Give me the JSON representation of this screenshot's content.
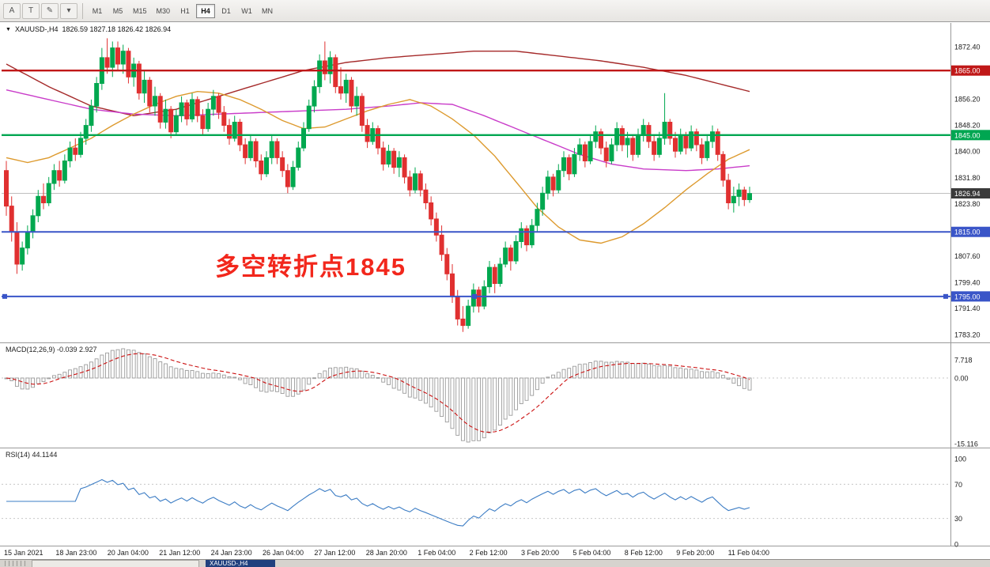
{
  "toolbar": {
    "left_buttons": [
      {
        "name": "font-tool-button",
        "label": "A"
      },
      {
        "name": "text-tool-button",
        "label": "T"
      },
      {
        "name": "color-tool-button",
        "label": "✎"
      },
      {
        "name": "color-tool-dropdown",
        "label": "▾"
      }
    ],
    "timeframes": [
      "M1",
      "M5",
      "M15",
      "M30",
      "H1",
      "H4",
      "D1",
      "W1",
      "MN"
    ],
    "active_timeframe": "H4"
  },
  "quote": {
    "symbol": "XAUUSD-,H4",
    "ohlc": "1826.59 1827.18 1826.42 1826.94"
  },
  "annotation": {
    "text": "多空转折点1845",
    "color": "#f2271c"
  },
  "bottom_tabs": {
    "active_label": "XAUUSD-,H4"
  },
  "chart_data": {
    "type": "candlestick",
    "symbol": "XAUUSD-",
    "timeframe": "H4",
    "ylim": [
      1780.5,
      1877.5
    ],
    "colors": {
      "up": "#00a84f",
      "down": "#e03030",
      "axis_text": "#1a1a1a"
    },
    "price_axis_ticks": [
      1872.4,
      1856.2,
      1848.2,
      1840.0,
      1831.8,
      1823.8,
      1807.6,
      1799.4,
      1791.4,
      1783.2
    ],
    "levels": [
      {
        "price": 1865.0,
        "label": "1865.00",
        "color": "#c01818",
        "width": 2.4
      },
      {
        "price": 1845.0,
        "label": "1845.00",
        "color": "#00a651",
        "width": 2.4
      },
      {
        "price": 1815.0,
        "label": "1815.00",
        "color": "#3a55c8",
        "width": 2
      },
      {
        "price": 1795.0,
        "label": "1795.00",
        "color": "#3a55c8",
        "width": 2,
        "handles": true
      }
    ],
    "current_price": {
      "value": 1826.94,
      "label": "1826.94",
      "bg": "#3a3a3a"
    },
    "moving_averages": [
      {
        "name": "ma-slow-darkred",
        "color": "#a52a2a",
        "points": [
          [
            0,
            1867
          ],
          [
            8,
            1860
          ],
          [
            16,
            1854
          ],
          [
            24,
            1851
          ],
          [
            32,
            1853
          ],
          [
            40,
            1857
          ],
          [
            48,
            1861
          ],
          [
            56,
            1865
          ],
          [
            64,
            1867.5
          ],
          [
            72,
            1869
          ],
          [
            80,
            1870
          ],
          [
            88,
            1871
          ],
          [
            96,
            1871
          ],
          [
            104,
            1869.5
          ],
          [
            112,
            1868
          ],
          [
            120,
            1866
          ],
          [
            128,
            1863.5
          ],
          [
            134,
            1861
          ],
          [
            140,
            1858.5
          ]
        ]
      },
      {
        "name": "ma-mid-magenta",
        "color": "#c93cc9",
        "points": [
          [
            0,
            1859
          ],
          [
            8,
            1856
          ],
          [
            16,
            1853
          ],
          [
            24,
            1851.5
          ],
          [
            32,
            1851
          ],
          [
            40,
            1851.5
          ],
          [
            48,
            1852
          ],
          [
            56,
            1852.5
          ],
          [
            64,
            1853
          ],
          [
            72,
            1854
          ],
          [
            78,
            1855
          ],
          [
            84,
            1854.5
          ],
          [
            90,
            1851
          ],
          [
            96,
            1847
          ],
          [
            102,
            1843
          ],
          [
            108,
            1839
          ],
          [
            114,
            1836
          ],
          [
            120,
            1834.5
          ],
          [
            128,
            1834
          ],
          [
            134,
            1834.5
          ],
          [
            140,
            1835.5
          ]
        ]
      },
      {
        "name": "ma-fast-orange",
        "color": "#dd9a2e",
        "points": [
          [
            0,
            1838
          ],
          [
            4,
            1836.5
          ],
          [
            8,
            1838
          ],
          [
            12,
            1841
          ],
          [
            16,
            1844
          ],
          [
            20,
            1848
          ],
          [
            24,
            1851.5
          ],
          [
            28,
            1854.5
          ],
          [
            32,
            1857
          ],
          [
            36,
            1858.5
          ],
          [
            40,
            1858
          ],
          [
            44,
            1856
          ],
          [
            48,
            1853
          ],
          [
            52,
            1849.5
          ],
          [
            56,
            1847
          ],
          [
            60,
            1847.5
          ],
          [
            64,
            1850
          ],
          [
            68,
            1852.5
          ],
          [
            72,
            1854.5
          ],
          [
            76,
            1856
          ],
          [
            80,
            1854
          ],
          [
            84,
            1850
          ],
          [
            88,
            1845
          ],
          [
            92,
            1838.5
          ],
          [
            96,
            1830.5
          ],
          [
            100,
            1822.5
          ],
          [
            104,
            1816.5
          ],
          [
            108,
            1812.5
          ],
          [
            112,
            1811.5
          ],
          [
            116,
            1813.5
          ],
          [
            120,
            1817.5
          ],
          [
            124,
            1822.5
          ],
          [
            128,
            1828
          ],
          [
            132,
            1833
          ],
          [
            136,
            1837.5
          ],
          [
            140,
            1840.5
          ]
        ]
      }
    ],
    "macd": {
      "label": "MACD(12,26,9) -0.039 2.927",
      "params": [
        12,
        26,
        9
      ],
      "axis": [
        "7.718",
        "0.00",
        "-15.116"
      ]
    },
    "rsi": {
      "label": "RSI(14) 44.1144",
      "period": 14,
      "color": "#3b7cc4",
      "levels": [
        70,
        30
      ],
      "axis": [
        "100",
        "70",
        "30",
        "0"
      ]
    },
    "time_axis": [
      "15 Jan 2021",
      "18 Jan 23:00",
      "20 Jan 04:00",
      "21 Jan 12:00",
      "24 Jan 23:00",
      "26 Jan 04:00",
      "27 Jan 12:00",
      "28 Jan 20:00",
      "1 Feb 04:00",
      "2 Feb 12:00",
      "3 Feb 20:00",
      "5 Feb 04:00",
      "8 Feb 12:00",
      "9 Feb 20:00",
      "11 Feb 04:00"
    ],
    "ohlc": [
      [
        1834,
        1837,
        1820,
        1823
      ],
      [
        1823,
        1826,
        1812,
        1815
      ],
      [
        1815,
        1818,
        1802,
        1805
      ],
      [
        1805,
        1812,
        1803,
        1810
      ],
      [
        1810,
        1817,
        1808,
        1815
      ],
      [
        1815,
        1822,
        1813,
        1820
      ],
      [
        1820,
        1828,
        1818,
        1826
      ],
      [
        1826,
        1830,
        1822,
        1824
      ],
      [
        1824,
        1832,
        1823,
        1830
      ],
      [
        1830,
        1836,
        1828,
        1834
      ],
      [
        1834,
        1837,
        1829,
        1831
      ],
      [
        1831,
        1839,
        1830,
        1837
      ],
      [
        1837,
        1843,
        1835,
        1841
      ],
      [
        1841,
        1844,
        1837,
        1839
      ],
      [
        1839,
        1846,
        1838,
        1844
      ],
      [
        1844,
        1850,
        1842,
        1848
      ],
      [
        1848,
        1856,
        1846,
        1854
      ],
      [
        1854,
        1863,
        1852,
        1861
      ],
      [
        1861,
        1872,
        1859,
        1869
      ],
      [
        1869,
        1875,
        1864,
        1866
      ],
      [
        1866,
        1874,
        1863,
        1872
      ],
      [
        1872,
        1874,
        1865,
        1867
      ],
      [
        1867,
        1873,
        1864,
        1871
      ],
      [
        1871,
        1872,
        1861,
        1863
      ],
      [
        1863,
        1869,
        1860,
        1867
      ],
      [
        1867,
        1868,
        1856,
        1858
      ],
      [
        1858,
        1865,
        1855,
        1862
      ],
      [
        1862,
        1863,
        1852,
        1854
      ],
      [
        1854,
        1860,
        1851,
        1857
      ],
      [
        1857,
        1858,
        1847,
        1849
      ],
      [
        1849,
        1856,
        1847,
        1853
      ],
      [
        1853,
        1854,
        1844,
        1846
      ],
      [
        1846,
        1853,
        1845,
        1851
      ],
      [
        1851,
        1857,
        1849,
        1855
      ],
      [
        1855,
        1856,
        1848,
        1850
      ],
      [
        1850,
        1858,
        1849,
        1856
      ],
      [
        1856,
        1857,
        1849,
        1851
      ],
      [
        1851,
        1853,
        1845,
        1847
      ],
      [
        1847,
        1855,
        1846,
        1853
      ],
      [
        1853,
        1859,
        1851,
        1857
      ],
      [
        1857,
        1858,
        1850,
        1852
      ],
      [
        1852,
        1854,
        1846,
        1848
      ],
      [
        1848,
        1850,
        1842,
        1844
      ],
      [
        1844,
        1851,
        1843,
        1849
      ],
      [
        1849,
        1850,
        1840,
        1842
      ],
      [
        1842,
        1844,
        1836,
        1838
      ],
      [
        1838,
        1845,
        1837,
        1843
      ],
      [
        1843,
        1844,
        1835,
        1837
      ],
      [
        1837,
        1839,
        1831,
        1833
      ],
      [
        1833,
        1840,
        1832,
        1838
      ],
      [
        1838,
        1845,
        1836,
        1843
      ],
      [
        1843,
        1844,
        1836,
        1838
      ],
      [
        1838,
        1840,
        1832,
        1834
      ],
      [
        1834,
        1836,
        1827,
        1829
      ],
      [
        1829,
        1837,
        1828,
        1835
      ],
      [
        1835,
        1843,
        1834,
        1841
      ],
      [
        1841,
        1849,
        1840,
        1847
      ],
      [
        1847,
        1856,
        1846,
        1854
      ],
      [
        1854,
        1862,
        1852,
        1860
      ],
      [
        1860,
        1870,
        1858,
        1868
      ],
      [
        1868,
        1874,
        1862,
        1864
      ],
      [
        1864,
        1871,
        1861,
        1869
      ],
      [
        1869,
        1870,
        1858,
        1860
      ],
      [
        1860,
        1866,
        1856,
        1858
      ],
      [
        1858,
        1864,
        1855,
        1862
      ],
      [
        1862,
        1863,
        1852,
        1854
      ],
      [
        1854,
        1860,
        1851,
        1857
      ],
      [
        1857,
        1858,
        1846,
        1848
      ],
      [
        1848,
        1850,
        1841,
        1843
      ],
      [
        1843,
        1849,
        1842,
        1847
      ],
      [
        1847,
        1848,
        1839,
        1841
      ],
      [
        1841,
        1843,
        1834,
        1836
      ],
      [
        1836,
        1842,
        1835,
        1840
      ],
      [
        1840,
        1841,
        1833,
        1835
      ],
      [
        1835,
        1840,
        1832,
        1838
      ],
      [
        1838,
        1839,
        1830,
        1832
      ],
      [
        1832,
        1834,
        1826,
        1828
      ],
      [
        1828,
        1835,
        1827,
        1833
      ],
      [
        1833,
        1834,
        1826,
        1828
      ],
      [
        1828,
        1830,
        1822,
        1824
      ],
      [
        1824,
        1826,
        1817,
        1819
      ],
      [
        1819,
        1821,
        1812,
        1814
      ],
      [
        1814,
        1817,
        1806,
        1808
      ],
      [
        1808,
        1810,
        1800,
        1802
      ],
      [
        1802,
        1805,
        1793,
        1795
      ],
      [
        1795,
        1797,
        1786,
        1788
      ],
      [
        1788,
        1792,
        1784,
        1786
      ],
      [
        1786,
        1794,
        1785,
        1792
      ],
      [
        1792,
        1799,
        1790,
        1797
      ],
      [
        1797,
        1798,
        1790,
        1792
      ],
      [
        1792,
        1800,
        1791,
        1798
      ],
      [
        1798,
        1806,
        1796,
        1804
      ],
      [
        1804,
        1805,
        1796,
        1799
      ],
      [
        1799,
        1807,
        1798,
        1805
      ],
      [
        1805,
        1812,
        1804,
        1810
      ],
      [
        1810,
        1811,
        1803,
        1806
      ],
      [
        1806,
        1814,
        1805,
        1812
      ],
      [
        1812,
        1818,
        1810,
        1816
      ],
      [
        1816,
        1817,
        1809,
        1811
      ],
      [
        1811,
        1819,
        1810,
        1817
      ],
      [
        1817,
        1824,
        1815,
        1822
      ],
      [
        1822,
        1829,
        1820,
        1827
      ],
      [
        1827,
        1834,
        1825,
        1832
      ],
      [
        1832,
        1833,
        1826,
        1828
      ],
      [
        1828,
        1836,
        1827,
        1834
      ],
      [
        1834,
        1840,
        1832,
        1838
      ],
      [
        1838,
        1839,
        1831,
        1833
      ],
      [
        1833,
        1841,
        1832,
        1839
      ],
      [
        1839,
        1844,
        1837,
        1842
      ],
      [
        1842,
        1843,
        1835,
        1837
      ],
      [
        1837,
        1845,
        1836,
        1843
      ],
      [
        1843,
        1848,
        1841,
        1846
      ],
      [
        1846,
        1847,
        1839,
        1841
      ],
      [
        1841,
        1843,
        1835,
        1837
      ],
      [
        1837,
        1844,
        1836,
        1842
      ],
      [
        1842,
        1849,
        1840,
        1847
      ],
      [
        1847,
        1848,
        1840,
        1842
      ],
      [
        1842,
        1846,
        1838,
        1844
      ],
      [
        1844,
        1845,
        1837,
        1839
      ],
      [
        1839,
        1847,
        1838,
        1845
      ],
      [
        1845,
        1850,
        1843,
        1848
      ],
      [
        1848,
        1849,
        1841,
        1843
      ],
      [
        1843,
        1845,
        1837,
        1839
      ],
      [
        1839,
        1846,
        1838,
        1844
      ],
      [
        1844,
        1858,
        1842,
        1849
      ],
      [
        1849,
        1850,
        1842,
        1844
      ],
      [
        1844,
        1846,
        1838,
        1840
      ],
      [
        1840,
        1847,
        1839,
        1845
      ],
      [
        1845,
        1846,
        1839,
        1841
      ],
      [
        1841,
        1848,
        1840,
        1846
      ],
      [
        1846,
        1847,
        1840,
        1842
      ],
      [
        1842,
        1844,
        1836,
        1838
      ],
      [
        1838,
        1845,
        1837,
        1843
      ],
      [
        1843,
        1848,
        1841,
        1846
      ],
      [
        1846,
        1847,
        1837,
        1839
      ],
      [
        1839,
        1840,
        1829,
        1831
      ],
      [
        1831,
        1833,
        1822,
        1824
      ],
      [
        1824,
        1829,
        1821,
        1826
      ],
      [
        1826,
        1830,
        1823,
        1828
      ],
      [
        1828,
        1829,
        1823,
        1825
      ],
      [
        1825,
        1829,
        1824,
        1826.9
      ]
    ]
  }
}
